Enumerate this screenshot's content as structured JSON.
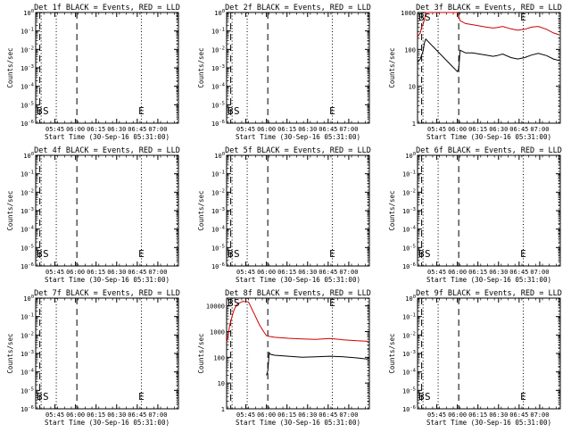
{
  "chart_data": [
    {
      "type": "line",
      "title": "Det 1f BLACK = Events, RED = LLD",
      "xlabel": "Start Time (30-Sep-16 05:31:00)",
      "ylabel": "Counts/sec",
      "x_ticks": [
        "05:45",
        "06:00",
        "06:15",
        "06:30",
        "06:45",
        "07:00"
      ],
      "y_ticks": [
        "10^-6",
        "10^-5",
        "10^-4",
        "10^-3",
        "10^-2",
        "10^-1",
        "10^0"
      ],
      "ylim": [
        -6,
        0
      ],
      "xlim_minutes": [
        0,
        104
      ],
      "y_axis": "log",
      "markers": [
        {
          "label": "B",
          "minute": 3
        },
        {
          "label": "S",
          "minute": 4
        },
        {
          "label": "E",
          "minute": 77
        }
      ],
      "dashed_lines_minutes": [
        3,
        30
      ],
      "dotted_lines_minutes": [
        4,
        15,
        77,
        103
      ],
      "series": []
    },
    {
      "type": "line",
      "title": "Det 2f BLACK = Events, RED = LLD",
      "xlabel": "Start Time (30-Sep-16 05:31:00)",
      "ylabel": "Counts/sec",
      "x_ticks": [
        "05:45",
        "06:00",
        "06:15",
        "06:30",
        "06:45",
        "07:00"
      ],
      "y_ticks": [
        "10^-6",
        "10^-5",
        "10^-4",
        "10^-3",
        "10^-2",
        "10^-1",
        "10^0"
      ],
      "ylim": [
        -6,
        0
      ],
      "xlim_minutes": [
        0,
        104
      ],
      "y_axis": "log",
      "markers": [
        {
          "label": "B",
          "minute": 3
        },
        {
          "label": "S",
          "minute": 4
        },
        {
          "label": "E",
          "minute": 77
        }
      ],
      "dashed_lines_minutes": [
        3,
        30
      ],
      "dotted_lines_minutes": [
        4,
        15,
        77,
        103
      ],
      "series": []
    },
    {
      "type": "line",
      "title": "Det 3f BLACK = Events, RED = LLD",
      "xlabel": "Start Time (30-Sep-16 05:31:00)",
      "ylabel": "Counts/sec",
      "x_ticks": [
        "05:45",
        "06:00",
        "06:15",
        "06:30",
        "06:45",
        "07:00"
      ],
      "y_ticks": [
        "1",
        "10",
        "100",
        "1000"
      ],
      "ylim": [
        0,
        3
      ],
      "xlim_minutes": [
        0,
        104
      ],
      "y_axis": "log",
      "markers": [
        {
          "label": "B",
          "minute": 3
        },
        {
          "label": "S",
          "minute": 4
        },
        {
          "label": "E",
          "minute": 77
        }
      ],
      "dashed_lines_minutes": [
        3,
        30
      ],
      "dotted_lines_minutes": [
        4,
        15,
        77,
        103
      ],
      "series": [
        {
          "color": "#cc0000",
          "x": [
            0,
            2,
            3,
            4,
            5,
            6,
            15,
            24,
            28,
            29,
            31,
            35,
            40,
            50,
            55,
            58,
            62,
            68,
            73,
            78,
            83,
            88,
            94,
            99,
            103
          ],
          "y": [
            220,
            280,
            400,
            480,
            640,
            1100,
            1200,
            1200,
            1150,
            1100,
            600,
            500,
            470,
            400,
            380,
            390,
            420,
            360,
            330,
            350,
            400,
            420,
            350,
            280,
            250
          ]
        },
        {
          "color": "#000000",
          "x": [
            0,
            2,
            3,
            4,
            5,
            6,
            29,
            30,
            31,
            35,
            40,
            50,
            55,
            58,
            62,
            68,
            73,
            78,
            83,
            88,
            94,
            99,
            103
          ],
          "y": [
            45,
            55,
            70,
            90,
            150,
            190,
            25,
            30,
            95,
            80,
            80,
            70,
            65,
            68,
            75,
            60,
            55,
            60,
            70,
            78,
            68,
            55,
            50
          ]
        }
      ]
    },
    {
      "type": "line",
      "title": "Det 4f BLACK = Events, RED = LLD",
      "xlabel": "Start Time (30-Sep-16 05:31:00)",
      "ylabel": "Counts/sec",
      "x_ticks": [
        "05:45",
        "06:00",
        "06:15",
        "06:30",
        "06:45",
        "07:00"
      ],
      "y_ticks": [
        "10^-6",
        "10^-5",
        "10^-4",
        "10^-3",
        "10^-2",
        "10^-1",
        "10^0"
      ],
      "ylim": [
        -6,
        0
      ],
      "xlim_minutes": [
        0,
        104
      ],
      "y_axis": "log",
      "markers": [
        {
          "label": "B",
          "minute": 3
        },
        {
          "label": "S",
          "minute": 4
        },
        {
          "label": "E",
          "minute": 77
        }
      ],
      "dashed_lines_minutes": [
        3,
        30
      ],
      "dotted_lines_minutes": [
        4,
        15,
        77,
        103
      ],
      "series": []
    },
    {
      "type": "line",
      "title": "Det 5f BLACK = Events, RED = LLD",
      "xlabel": "Start Time (30-Sep-16 05:31:00)",
      "ylabel": "Counts/sec",
      "x_ticks": [
        "05:45",
        "06:00",
        "06:15",
        "06:30",
        "06:45",
        "07:00"
      ],
      "y_ticks": [
        "10^-6",
        "10^-5",
        "10^-4",
        "10^-3",
        "10^-2",
        "10^-1",
        "10^0"
      ],
      "ylim": [
        -6,
        0
      ],
      "xlim_minutes": [
        0,
        104
      ],
      "y_axis": "log",
      "markers": [
        {
          "label": "B",
          "minute": 3
        },
        {
          "label": "S",
          "minute": 4
        },
        {
          "label": "E",
          "minute": 77
        }
      ],
      "dashed_lines_minutes": [
        3,
        30
      ],
      "dotted_lines_minutes": [
        4,
        15,
        77,
        103
      ],
      "series": []
    },
    {
      "type": "line",
      "title": "Det 6f BLACK = Events, RED = LLD",
      "xlabel": "Start Time (30-Sep-16 05:31:00)",
      "ylabel": "Counts/sec",
      "x_ticks": [
        "05:45",
        "06:00",
        "06:15",
        "06:30",
        "06:45",
        "07:00"
      ],
      "y_ticks": [
        "10^-6",
        "10^-5",
        "10^-4",
        "10^-3",
        "10^-2",
        "10^-1",
        "10^0"
      ],
      "ylim": [
        -6,
        0
      ],
      "xlim_minutes": [
        0,
        104
      ],
      "y_axis": "log",
      "markers": [
        {
          "label": "B",
          "minute": 3
        },
        {
          "label": "S",
          "minute": 4
        },
        {
          "label": "E",
          "minute": 77
        }
      ],
      "dashed_lines_minutes": [
        3,
        30
      ],
      "dotted_lines_minutes": [
        4,
        15,
        77,
        103
      ],
      "series": []
    },
    {
      "type": "line",
      "title": "Det 7f BLACK = Events, RED = LLD",
      "xlabel": "Start Time (30-Sep-16 05:31:00)",
      "ylabel": "Counts/sec",
      "x_ticks": [
        "05:45",
        "06:00",
        "06:15",
        "06:30",
        "06:45",
        "07:00"
      ],
      "y_ticks": [
        "10^-6",
        "10^-5",
        "10^-4",
        "10^-3",
        "10^-2",
        "10^-1",
        "10^0"
      ],
      "ylim": [
        -6,
        0
      ],
      "xlim_minutes": [
        0,
        104
      ],
      "y_axis": "log",
      "markers": [
        {
          "label": "B",
          "minute": 3
        },
        {
          "label": "S",
          "minute": 4
        },
        {
          "label": "E",
          "minute": 77
        }
      ],
      "dashed_lines_minutes": [
        3,
        30
      ],
      "dotted_lines_minutes": [
        4,
        15,
        77,
        103
      ],
      "series": []
    },
    {
      "type": "line",
      "title": "Det 8f BLACK = Events, RED = LLD",
      "xlabel": "Start Time (30-Sep-16 05:31:00)",
      "ylabel": "Counts/sec",
      "x_ticks": [
        "05:45",
        "06:00",
        "06:15",
        "06:30",
        "06:45",
        "07:00"
      ],
      "y_ticks": [
        "1",
        "10",
        "100",
        "1000",
        "10000"
      ],
      "ylim": [
        0,
        4.3
      ],
      "xlim_minutes": [
        0,
        104
      ],
      "y_axis": "log",
      "markers": [
        {
          "label": "B",
          "minute": 3
        },
        {
          "label": "S",
          "minute": 4
        },
        {
          "label": "E",
          "minute": 77
        }
      ],
      "dashed_lines_minutes": [
        3,
        30
      ],
      "dotted_lines_minutes": [
        4,
        15,
        77,
        103
      ],
      "series": [
        {
          "color": "#cc0000",
          "x": [
            0,
            1,
            2,
            3,
            4,
            5,
            6,
            8,
            12,
            16,
            20,
            24,
            27,
            29,
            31,
            35,
            45,
            55,
            65,
            75,
            85,
            95,
            103
          ],
          "y": [
            400,
            600,
            1500,
            2500,
            4000,
            6000,
            8000,
            12000,
            15000,
            14000,
            5000,
            1800,
            1000,
            700,
            650,
            600,
            550,
            520,
            500,
            540,
            480,
            440,
            420
          ]
        },
        {
          "color": "#000000",
          "x": [
            29,
            30,
            31,
            32,
            35,
            45,
            55,
            65,
            75,
            85,
            95,
            103
          ],
          "y": [
            20,
            30,
            150,
            130,
            120,
            110,
            100,
            105,
            110,
            105,
            95,
            85
          ]
        }
      ]
    },
    {
      "type": "line",
      "title": "Det 9f BLACK = Events, RED = LLD",
      "xlabel": "Start Time (30-Sep-16 05:31:00)",
      "ylabel": "Counts/sec",
      "x_ticks": [
        "05:45",
        "06:00",
        "06:15",
        "06:30",
        "06:45",
        "07:00"
      ],
      "y_ticks": [
        "10^-6",
        "10^-5",
        "10^-4",
        "10^-3",
        "10^-2",
        "10^-1",
        "10^0"
      ],
      "ylim": [
        -6,
        0
      ],
      "xlim_minutes": [
        0,
        104
      ],
      "y_axis": "log",
      "markers": [
        {
          "label": "B",
          "minute": 3
        },
        {
          "label": "S",
          "minute": 4
        },
        {
          "label": "E",
          "minute": 77
        }
      ],
      "dashed_lines_minutes": [
        3,
        30
      ],
      "dotted_lines_minutes": [
        4,
        15,
        77,
        103
      ],
      "series": []
    }
  ]
}
